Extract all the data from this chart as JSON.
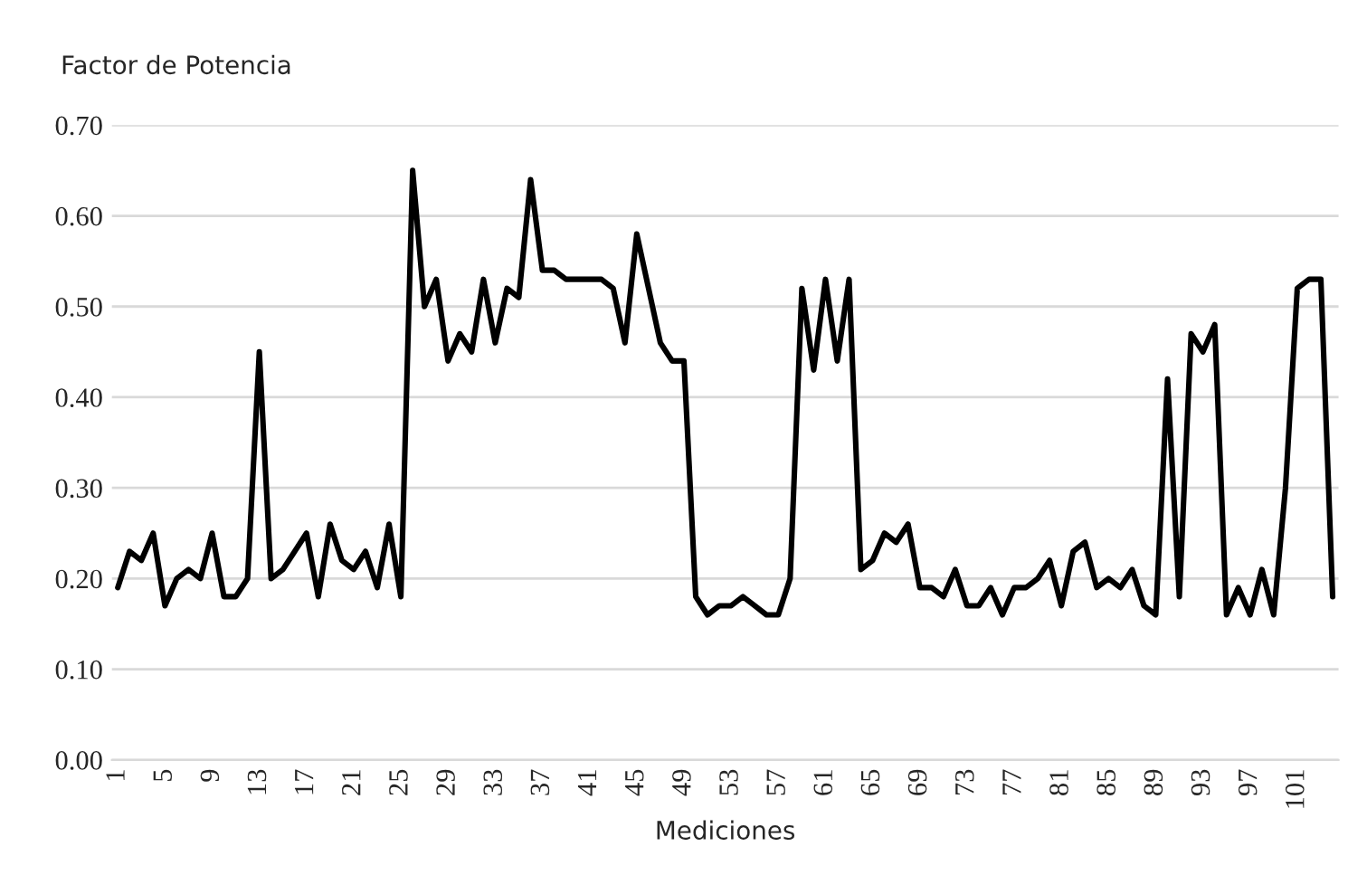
{
  "chart_data": {
    "type": "line",
    "ylabel": "Factor de Potencia",
    "xlabel": "Mediciones",
    "categories": [
      "1",
      null,
      null,
      null,
      "5",
      null,
      null,
      null,
      "9",
      null,
      null,
      null,
      "13",
      null,
      null,
      null,
      "17",
      null,
      null,
      null,
      "21",
      null,
      null,
      null,
      "25",
      null,
      null,
      null,
      "29",
      null,
      null,
      null,
      "33",
      null,
      null,
      null,
      "37",
      null,
      null,
      null,
      "41",
      null,
      null,
      null,
      "45",
      null,
      null,
      null,
      "49",
      null,
      null,
      null,
      "53",
      null,
      null,
      null,
      "57",
      null,
      null,
      null,
      "61",
      null,
      null,
      null,
      "65",
      null,
      null,
      null,
      "69",
      null,
      null,
      null,
      "73",
      null,
      null,
      null,
      "77",
      null,
      null,
      null,
      "81",
      null,
      null,
      null,
      "85",
      null,
      null,
      null,
      "89",
      null,
      null,
      null,
      "93",
      null,
      null,
      null,
      "97",
      null,
      null,
      null,
      "101",
      null,
      null,
      null
    ],
    "series": [
      {
        "color": "#000000",
        "values": [
          0.19,
          0.23,
          0.22,
          0.25,
          0.17,
          0.2,
          0.21,
          0.2,
          0.25,
          0.18,
          0.18,
          0.2,
          0.45,
          0.2,
          0.21,
          0.23,
          0.25,
          0.18,
          0.26,
          0.22,
          0.21,
          0.23,
          0.19,
          0.26,
          0.18,
          0.65,
          0.5,
          0.53,
          0.44,
          0.47,
          0.45,
          0.53,
          0.46,
          0.52,
          0.51,
          0.64,
          0.54,
          0.54,
          0.53,
          0.53,
          0.53,
          0.53,
          0.52,
          0.46,
          0.58,
          0.52,
          0.46,
          0.44,
          0.44,
          0.18,
          0.16,
          0.17,
          0.17,
          0.18,
          0.17,
          0.16,
          0.16,
          0.2,
          0.52,
          0.43,
          0.53,
          0.44,
          0.53,
          0.21,
          0.22,
          0.25,
          0.24,
          0.26,
          0.19,
          0.19,
          0.18,
          0.21,
          0.17,
          0.17,
          0.19,
          0.16,
          0.19,
          0.19,
          0.2,
          0.22,
          0.17,
          0.23,
          0.24,
          0.19,
          0.2,
          0.19,
          0.21,
          0.17,
          0.16,
          0.42,
          0.18,
          0.47,
          0.45,
          0.48,
          0.16,
          0.19,
          0.16,
          0.21,
          0.16,
          0.3,
          0.52,
          0.53,
          0.53,
          0.18
        ]
      }
    ],
    "ylim": [
      0,
      0.7
    ],
    "yticks": [
      {
        "value": 0,
        "label": "0.00"
      },
      {
        "value": 0.1,
        "label": "0.10"
      },
      {
        "value": 0.2,
        "label": "0.20"
      },
      {
        "value": 0.3,
        "label": "0.30"
      },
      {
        "value": 0.4,
        "label": "0.40"
      },
      {
        "value": 0.5,
        "label": "0.50"
      },
      {
        "value": 0.6,
        "label": "0.60"
      },
      {
        "value": 0.7,
        "label": "0.70"
      }
    ],
    "grid": "y",
    "marker": "none",
    "line_style": "solid"
  }
}
